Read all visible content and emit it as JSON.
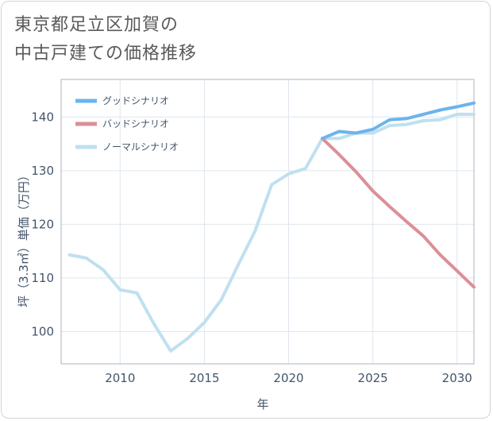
{
  "title_lines": [
    "東京都足立区加賀の",
    "中古戸建ての価格推移"
  ],
  "chart_data": {
    "type": "line",
    "title": "東京都足立区加賀の中古戸建ての価格推移",
    "xlabel": "年",
    "ylabel": "坪（3.3㎡）単価（万円）",
    "xlim": [
      2006.5,
      2031
    ],
    "ylim": [
      94,
      147
    ],
    "xticks": [
      2010,
      2015,
      2020,
      2025,
      2030
    ],
    "yticks": [
      100,
      110,
      120,
      130,
      140
    ],
    "legend_position": "top-left",
    "series": [
      {
        "name": "グッドシナリオ",
        "color": "#6cb4ec",
        "x": [
          2022,
          2023,
          2024,
          2025,
          2026,
          2027,
          2028,
          2029,
          2030,
          2031
        ],
        "y": [
          136,
          137.3,
          137,
          137.7,
          139.5,
          139.7,
          140.5,
          141.3,
          141.9,
          142.6
        ]
      },
      {
        "name": "バッドシナリオ",
        "color": "#dc8f98",
        "x": [
          2022,
          2023,
          2024,
          2025,
          2026,
          2027,
          2028,
          2029,
          2030,
          2031
        ],
        "y": [
          136,
          133,
          129.8,
          126.2,
          123.3,
          120.5,
          117.8,
          114.3,
          111.3,
          108.3
        ]
      },
      {
        "name": "ノーマルシナリオ",
        "color": "#bfe0f0",
        "x": [
          2007,
          2008,
          2009,
          2010,
          2011,
          2012,
          2013,
          2014,
          2015,
          2016,
          2017,
          2018,
          2019,
          2020,
          2021,
          2022,
          2023,
          2024,
          2025,
          2026,
          2027,
          2028,
          2029,
          2030,
          2031
        ],
        "y": [
          114.3,
          113.7,
          111.5,
          107.8,
          107.2,
          101.5,
          96.4,
          98.7,
          101.7,
          105.9,
          112.4,
          118.7,
          127.4,
          129.4,
          130.4,
          136,
          136,
          137,
          137,
          138.4,
          138.6,
          139.3,
          139.5,
          140.5,
          140.5
        ]
      }
    ]
  }
}
